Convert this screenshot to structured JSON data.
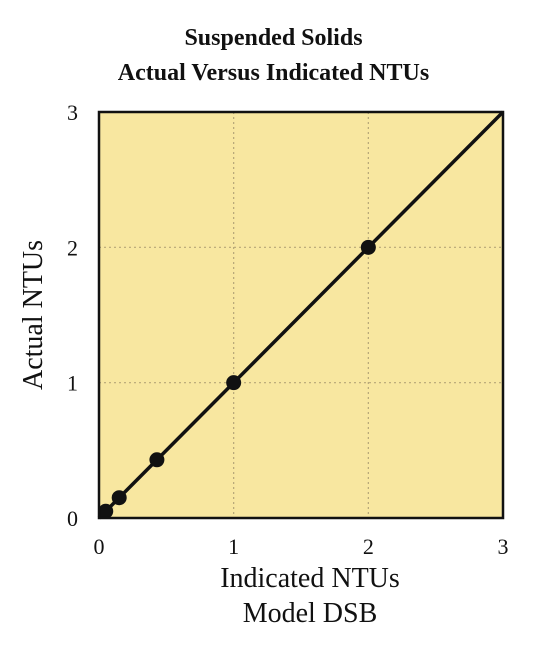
{
  "chart_data": {
    "type": "scatter",
    "title": "Suspended Solids",
    "subtitle": "Actual Versus Indicated NTUs",
    "xlabel": "Indicated NTUs",
    "xlabel2": "Model DSB",
    "ylabel": "Actual NTUs",
    "xlim": [
      0,
      3
    ],
    "ylim": [
      0,
      3
    ],
    "x_ticks": [
      0,
      1,
      2,
      3
    ],
    "y_ticks": [
      0,
      1,
      2,
      3
    ],
    "grid": true,
    "series": [
      {
        "points": [
          {
            "x": 0.05,
            "y": 0.05
          },
          {
            "x": 0.15,
            "y": 0.15
          },
          {
            "x": 0.43,
            "y": 0.43
          },
          {
            "x": 1.0,
            "y": 1.0
          },
          {
            "x": 2.0,
            "y": 2.0
          }
        ],
        "fit_line": [
          {
            "x": 0,
            "y": 0
          },
          {
            "x": 3,
            "y": 3
          }
        ]
      }
    ],
    "colors": {
      "plot_background": "#f8e7a0",
      "plot_border": "#111111",
      "grid": "#b5a677",
      "marks": "#111111"
    }
  }
}
